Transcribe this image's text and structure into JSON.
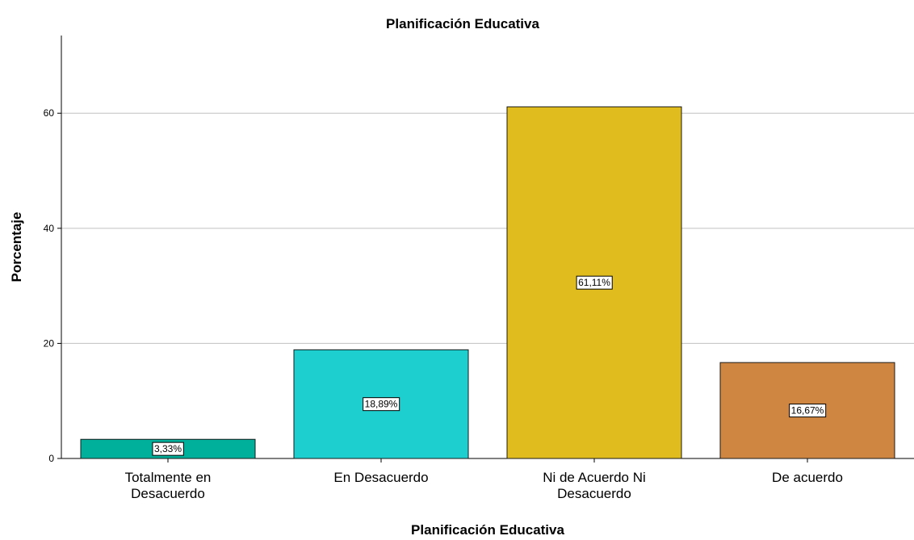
{
  "chart_data": {
    "type": "bar",
    "title": "Planificación Educativa",
    "xlabel": "Planificación Educativa",
    "ylabel": "Porcentaje",
    "categories": [
      [
        "Totalmente en",
        "Desacuerdo"
      ],
      [
        "En Desacuerdo"
      ],
      [
        "Ni de Acuerdo Ni",
        "Desacuerdo"
      ],
      [
        "De acuerdo"
      ]
    ],
    "values": [
      3.33,
      18.89,
      61.11,
      16.67
    ],
    "value_labels": [
      "3,33%",
      "18,89%",
      "61,11%",
      "16,67%"
    ],
    "colors": [
      "#00b09b",
      "#1dcfcf",
      "#e0bc1e",
      "#cf8640"
    ],
    "yticks": [
      0,
      20,
      40,
      60
    ],
    "ylim": [
      0,
      73.5
    ],
    "grid": true,
    "gridline_color": "#c0c0c0"
  }
}
